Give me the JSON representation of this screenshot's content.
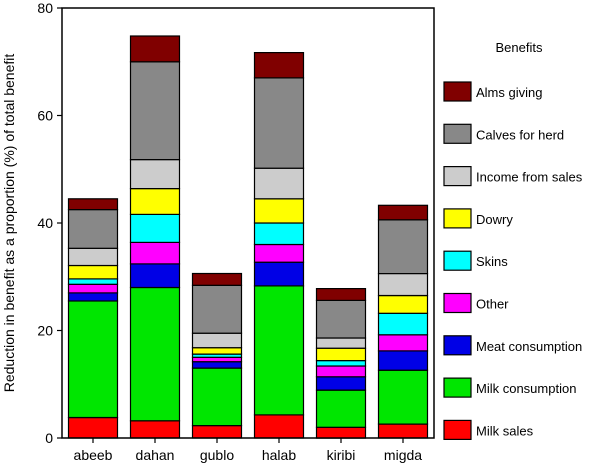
{
  "chart_data": {
    "type": "bar",
    "stacked": true,
    "ylabel": "Reduction in benefit as a proportion (%) of total benefit",
    "xlabel": "",
    "ylim": [
      0,
      80
    ],
    "yticks": [
      0,
      20,
      40,
      60,
      80
    ],
    "categories": [
      "abeeb",
      "dahan",
      "gublo",
      "halab",
      "kiribi",
      "migda"
    ],
    "legend_title": "Benefits",
    "legend_position": "right",
    "series": [
      {
        "name": "Milk sales",
        "color": "#ff0000",
        "values": [
          3.8,
          3.2,
          2.3,
          4.3,
          2.0,
          2.6
        ]
      },
      {
        "name": "Milk consumption",
        "color": "#00e600",
        "values": [
          21.7,
          24.8,
          10.7,
          24.0,
          6.9,
          10.0
        ]
      },
      {
        "name": "Meat consumption",
        "color": "#0000e6",
        "values": [
          1.5,
          4.4,
          1.2,
          4.4,
          2.5,
          3.6
        ]
      },
      {
        "name": "Other",
        "color": "#ff00ff",
        "values": [
          1.6,
          4.0,
          0.8,
          3.3,
          2.0,
          3.0
        ]
      },
      {
        "name": "Skins",
        "color": "#00ffff",
        "values": [
          1.0,
          5.2,
          0.6,
          4.0,
          1.0,
          4.0
        ]
      },
      {
        "name": "Dowry",
        "color": "#ffff00",
        "values": [
          2.5,
          4.8,
          1.2,
          4.5,
          2.3,
          3.3
        ]
      },
      {
        "name": "Income from sales",
        "color": "#cccccc",
        "values": [
          3.2,
          5.4,
          2.7,
          5.7,
          1.9,
          4.1
        ]
      },
      {
        "name": "Calves for herd",
        "color": "#888888",
        "values": [
          7.2,
          18.2,
          8.9,
          16.8,
          7.0,
          10.0
        ]
      },
      {
        "name": "Alms giving",
        "color": "#800000",
        "values": [
          2.0,
          4.8,
          2.2,
          4.7,
          2.2,
          2.7
        ]
      }
    ]
  }
}
